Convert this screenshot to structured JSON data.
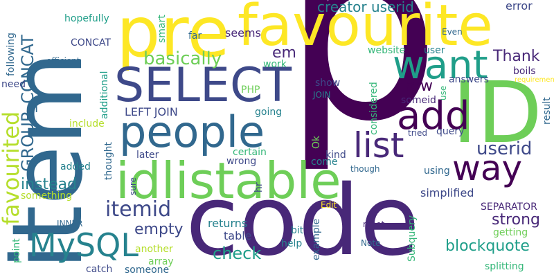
{
  "palette": {
    "yellow": "#fde725",
    "lime": "#b5de2b",
    "green": "#6ece58",
    "teal": "#35b779",
    "sea": "#1f9e89",
    "blue": "#26828e",
    "steel": "#31688e",
    "indigo": "#3e4989",
    "purple": "#482878",
    "dark": "#440154"
  },
  "words": [
    {
      "text": "p",
      "tone": "dark",
      "vertical": false
    },
    {
      "text": "code",
      "tone": "purple",
      "vertical": false
    },
    {
      "text": "item",
      "tone": "steel",
      "vertical": true
    },
    {
      "text": "pre",
      "tone": "yellow",
      "vertical": false
    },
    {
      "text": "favourite",
      "tone": "yellow",
      "vertical": false
    },
    {
      "text": "ID",
      "tone": "green",
      "vertical": false
    },
    {
      "text": "SELECT",
      "tone": "indigo",
      "vertical": false
    },
    {
      "text": "idlistable",
      "tone": "green",
      "vertical": false
    },
    {
      "text": "people",
      "tone": "steel",
      "vertical": false
    },
    {
      "text": "want",
      "tone": "sea",
      "vertical": false
    },
    {
      "text": "add",
      "tone": "dark",
      "vertical": false
    },
    {
      "text": "way",
      "tone": "dark",
      "vertical": false
    },
    {
      "text": "list",
      "tone": "purple",
      "vertical": false
    },
    {
      "text": "MySQL",
      "tone": "blue",
      "vertical": false
    },
    {
      "text": "favourited",
      "tone": "lime",
      "vertical": true
    },
    {
      "text": "GROUP_CONCAT",
      "tone": "steel",
      "vertical": true
    },
    {
      "text": "itemid",
      "tone": "indigo",
      "vertical": false
    },
    {
      "text": "basically",
      "tone": "green",
      "vertical": false
    },
    {
      "text": "creator userid",
      "tone": "blue",
      "vertical": false
    },
    {
      "text": "Thank",
      "tone": "purple",
      "vertical": false
    },
    {
      "text": "userid",
      "tone": "indigo",
      "vertical": false
    },
    {
      "text": "check",
      "tone": "sea",
      "vertical": false
    },
    {
      "text": "blockquote",
      "tone": "sea",
      "vertical": false
    },
    {
      "text": "instead",
      "tone": "blue",
      "vertical": false
    },
    {
      "text": "strong",
      "tone": "purple",
      "vertical": false
    },
    {
      "text": "empty",
      "tone": "indigo",
      "vertical": false
    },
    {
      "text": "row",
      "tone": "dark",
      "vertical": false
    },
    {
      "text": "em",
      "tone": "purple",
      "vertical": false
    },
    {
      "text": "seems",
      "tone": "purple",
      "vertical": false
    },
    {
      "text": "LEFT JOIN",
      "tone": "indigo",
      "vertical": false
    },
    {
      "text": "returns",
      "tone": "blue",
      "vertical": false
    },
    {
      "text": "table",
      "tone": "indigo",
      "vertical": false
    },
    {
      "text": "simplified",
      "tone": "indigo",
      "vertical": false
    },
    {
      "text": "SEPARATOR",
      "tone": "purple",
      "vertical": false
    },
    {
      "text": "error",
      "tone": "indigo",
      "vertical": false
    },
    {
      "text": "hopefully",
      "tone": "sea",
      "vertical": false
    },
    {
      "text": "CONCAT",
      "tone": "indigo",
      "vertical": false
    },
    {
      "text": "website",
      "tone": "teal",
      "vertical": false
    },
    {
      "text": "user",
      "tone": "blue",
      "vertical": false
    },
    {
      "text": "work",
      "tone": "teal",
      "vertical": false
    },
    {
      "text": "PHP",
      "tone": "green",
      "vertical": false
    },
    {
      "text": "need",
      "tone": "indigo",
      "vertical": false
    },
    {
      "text": "show",
      "tone": "indigo",
      "vertical": false
    },
    {
      "text": "JOIN",
      "tone": "blue",
      "vertical": false
    },
    {
      "text": "answers",
      "tone": "indigo",
      "vertical": false
    },
    {
      "text": "boils",
      "tone": "purple",
      "vertical": false
    },
    {
      "text": "someid",
      "tone": "purple",
      "vertical": false
    },
    {
      "text": "going",
      "tone": "blue",
      "vertical": false
    },
    {
      "text": "include",
      "tone": "lime",
      "vertical": false
    },
    {
      "text": "later",
      "tone": "indigo",
      "vertical": false
    },
    {
      "text": "certain",
      "tone": "teal",
      "vertical": false
    },
    {
      "text": "kind",
      "tone": "indigo",
      "vertical": false
    },
    {
      "text": "query",
      "tone": "indigo",
      "vertical": false
    },
    {
      "text": "tried",
      "tone": "indigo",
      "vertical": false
    },
    {
      "text": "wrong",
      "tone": "indigo",
      "vertical": false
    },
    {
      "text": "come",
      "tone": "blue",
      "vertical": false
    },
    {
      "text": "added",
      "tone": "blue",
      "vertical": false
    },
    {
      "text": "though",
      "tone": "steel",
      "vertical": false
    },
    {
      "text": "using",
      "tone": "steel",
      "vertical": false
    },
    {
      "text": "something",
      "tone": "lime",
      "vertical": false
    },
    {
      "text": "INNER",
      "tone": "steel",
      "vertical": false
    },
    {
      "text": "bit",
      "tone": "blue",
      "vertical": false
    },
    {
      "text": "help",
      "tone": "blue",
      "vertical": false
    },
    {
      "text": "example",
      "tone": "steel",
      "vertical": true
    },
    {
      "text": "Note",
      "tone": "steel",
      "vertical": false
    },
    {
      "text": "meet",
      "tone": "purple",
      "vertical": false
    },
    {
      "text": "getting",
      "tone": "green",
      "vertical": false
    },
    {
      "text": "another",
      "tone": "lime",
      "vertical": false
    },
    {
      "text": "array",
      "tone": "green",
      "vertical": false
    },
    {
      "text": "catch",
      "tone": "indigo",
      "vertical": false
    },
    {
      "text": "someone",
      "tone": "steel",
      "vertical": false
    },
    {
      "text": "splitting",
      "tone": "teal",
      "vertical": false
    },
    {
      "text": "Edit",
      "tone": "yellow",
      "vertical": false
    },
    {
      "text": "Even",
      "tone": "steel",
      "vertical": false
    },
    {
      "text": "far",
      "tone": "steel",
      "vertical": false
    },
    {
      "text": "efficient",
      "tone": "steel",
      "vertical": false
    },
    {
      "text": "smart",
      "tone": "teal",
      "vertical": true
    },
    {
      "text": "following",
      "tone": "steel",
      "vertical": true
    },
    {
      "text": "additional",
      "tone": "sea",
      "vertical": true
    },
    {
      "text": "thought",
      "tone": "steel",
      "vertical": true
    },
    {
      "text": "considered",
      "tone": "teal",
      "vertical": true
    },
    {
      "text": "Subquery",
      "tone": "teal",
      "vertical": true
    },
    {
      "text": "result",
      "tone": "steel",
      "vertical": true
    },
    {
      "text": "requirement",
      "tone": "yellow",
      "vertical": false
    },
    {
      "text": "Ok",
      "tone": "green",
      "vertical": true
    },
    {
      "text": "hr",
      "tone": "indigo",
      "vertical": true
    },
    {
      "text": "sure",
      "tone": "indigo",
      "vertical": true
    },
    {
      "text": "use",
      "tone": "teal",
      "vertical": true
    },
    {
      "text": "point",
      "tone": "teal",
      "vertical": true
    }
  ]
}
